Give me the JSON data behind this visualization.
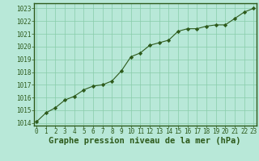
{
  "x": [
    0,
    1,
    2,
    3,
    4,
    5,
    6,
    7,
    8,
    9,
    10,
    11,
    12,
    13,
    14,
    15,
    16,
    17,
    18,
    19,
    20,
    21,
    22,
    23
  ],
  "y": [
    1014.1,
    1014.8,
    1015.2,
    1015.8,
    1016.1,
    1016.6,
    1016.9,
    1017.0,
    1017.3,
    1018.1,
    1019.2,
    1019.5,
    1020.1,
    1020.3,
    1020.5,
    1021.2,
    1021.4,
    1021.4,
    1021.6,
    1021.7,
    1021.7,
    1022.2,
    1022.7,
    1023.0
  ],
  "ylim": [
    1013.8,
    1023.4
  ],
  "yticks": [
    1014,
    1015,
    1016,
    1017,
    1018,
    1019,
    1020,
    1021,
    1022,
    1023
  ],
  "xticks": [
    0,
    1,
    2,
    3,
    4,
    5,
    6,
    7,
    8,
    9,
    10,
    11,
    12,
    13,
    14,
    15,
    16,
    17,
    18,
    19,
    20,
    21,
    22,
    23
  ],
  "xlabel": "Graphe pression niveau de la mer (hPa)",
  "line_color": "#2d5a1b",
  "marker": "D",
  "marker_size": 2.2,
  "bg_color": "#b8e8d8",
  "grid_color": "#88ccaa",
  "tick_color": "#2d5a1b",
  "label_color": "#2d5a1b",
  "tick_fontsize": 5.5,
  "xlabel_fontsize": 7.5,
  "spine_color": "#2d5a1b"
}
